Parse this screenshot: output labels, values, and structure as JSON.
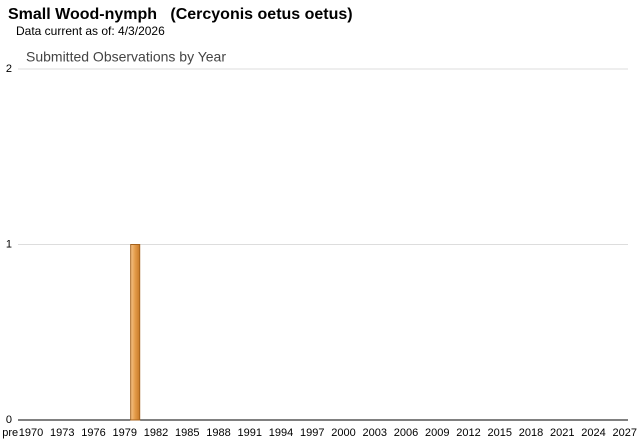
{
  "chart_data": {
    "type": "bar",
    "title": "Small Wood-nymph   (Cercyonis oetus oetus)",
    "subtitle": "Data current as of: 4/3/2026",
    "chart_title": "Submitted Observations by Year",
    "categories": [
      "pre",
      null,
      "1970",
      null,
      null,
      "1973",
      null,
      null,
      "1976",
      null,
      null,
      "1979",
      null,
      null,
      "1982",
      null,
      null,
      "1985",
      null,
      null,
      "1988",
      null,
      null,
      "1991",
      null,
      null,
      "1994",
      null,
      null,
      "1997",
      null,
      null,
      "2000",
      null,
      null,
      "2003",
      null,
      null,
      "2006",
      null,
      null,
      "2009",
      null,
      null,
      "2012",
      null,
      null,
      "2015",
      null,
      null,
      "2018",
      null,
      null,
      "2021",
      null,
      null,
      "2024",
      null,
      null,
      "2027"
    ],
    "values": [
      0,
      0,
      0,
      0,
      0,
      0,
      0,
      0,
      0,
      0,
      0,
      0,
      1,
      0,
      0,
      0,
      0,
      0,
      0,
      0,
      0,
      0,
      0,
      0,
      0,
      0,
      0,
      0,
      0,
      0,
      0,
      0,
      0,
      0,
      0,
      0,
      0,
      0,
      0,
      0,
      0,
      0,
      0,
      0,
      0,
      0,
      0,
      0,
      0,
      0,
      0,
      0,
      0,
      0,
      0,
      0,
      0,
      0,
      0,
      0
    ],
    "color": "#e39a48",
    "ylim": [
      0,
      2
    ],
    "yticks": [
      0,
      1,
      2
    ],
    "grid": true
  }
}
